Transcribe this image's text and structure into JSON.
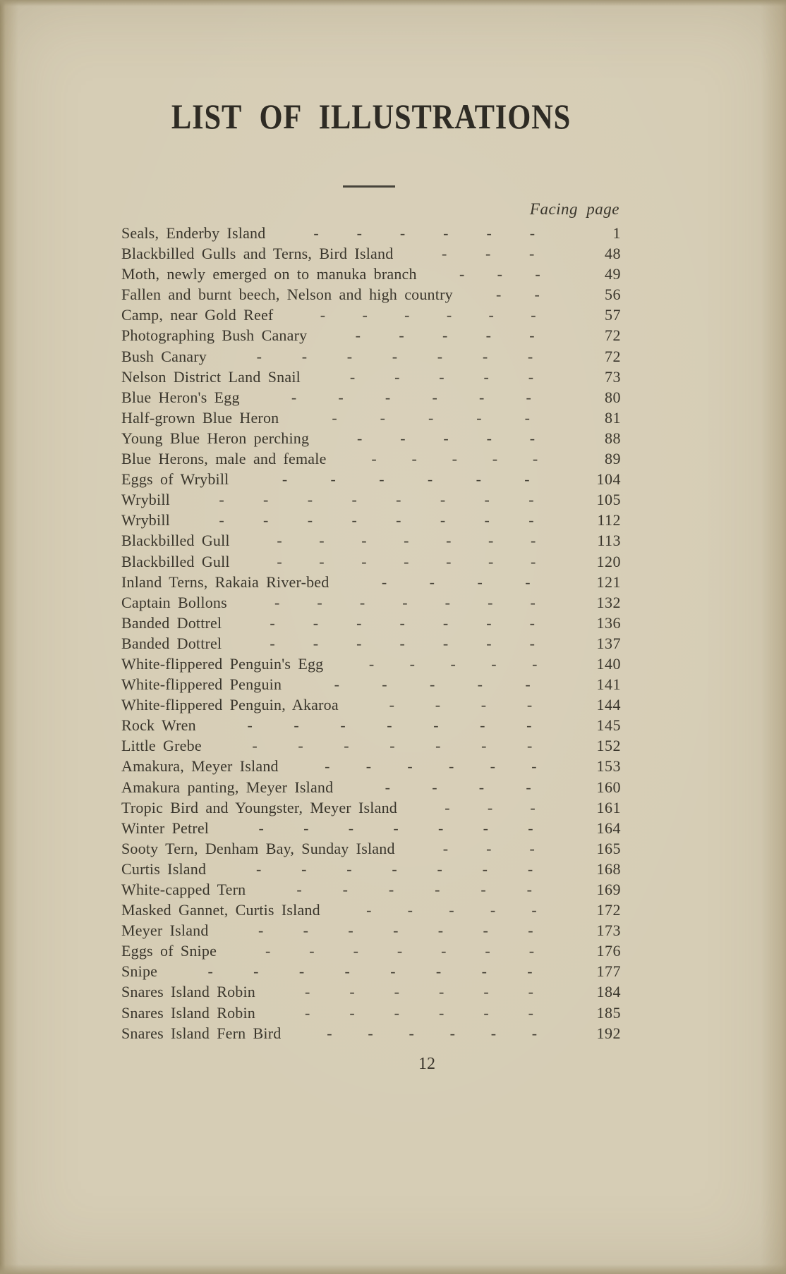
{
  "page": {
    "title": "LIST OF ILLUSTRATIONS",
    "column_header": "Facing page",
    "footer_page_number": "12",
    "paper_color": "#d6cdb5",
    "ink_color": "#3a362c"
  },
  "entries": [
    {
      "label": "Seals, Enderby Island",
      "dashes": 6,
      "page": "1"
    },
    {
      "label": "Blackbilled Gulls and Terns, Bird Island",
      "dashes": 3,
      "page": "48"
    },
    {
      "label": "Moth, newly emerged on to manuka branch",
      "dashes": 3,
      "page": "49"
    },
    {
      "label": "Fallen and burnt beech, Nelson and high country",
      "dashes": 2,
      "page": "56"
    },
    {
      "label": "Camp, near Gold Reef",
      "dashes": 6,
      "page": "57"
    },
    {
      "label": "Photographing Bush Canary",
      "dashes": 5,
      "page": "72"
    },
    {
      "label": "Bush Canary",
      "dashes": 7,
      "page": "72"
    },
    {
      "label": "Nelson District Land Snail",
      "dashes": 5,
      "page": "73"
    },
    {
      "label": "Blue Heron's Egg",
      "dashes": 6,
      "page": "80"
    },
    {
      "label": "Half-grown Blue Heron",
      "dashes": 5,
      "page": "81"
    },
    {
      "label": "Young Blue Heron perching",
      "dashes": 5,
      "page": "88"
    },
    {
      "label": "Blue Herons, male and female",
      "dashes": 5,
      "page": "89"
    },
    {
      "label": "Eggs of Wrybill",
      "dashes": 6,
      "page": "104"
    },
    {
      "label": "Wrybill",
      "dashes": 8,
      "page": "105"
    },
    {
      "label": "Wrybill",
      "dashes": 8,
      "page": "112"
    },
    {
      "label": "Blackbilled Gull",
      "dashes": 7,
      "page": "113"
    },
    {
      "label": "Blackbilled Gull",
      "dashes": 7,
      "page": "120"
    },
    {
      "label": "Inland Terns, Rakaia River-bed",
      "dashes": 4,
      "page": "121"
    },
    {
      "label": "Captain Bollons",
      "dashes": 7,
      "page": "132"
    },
    {
      "label": "Banded Dottrel",
      "dashes": 7,
      "page": "136"
    },
    {
      "label": "Banded Dottrel",
      "dashes": 7,
      "page": "137"
    },
    {
      "label": "White-flippered Penguin's Egg",
      "dashes": 5,
      "page": "140"
    },
    {
      "label": "White-flippered Penguin",
      "dashes": 5,
      "page": "141"
    },
    {
      "label": "White-flippered Penguin, Akaroa",
      "dashes": 4,
      "page": "144"
    },
    {
      "label": "Rock Wren",
      "dashes": 7,
      "page": "145"
    },
    {
      "label": "Little Grebe",
      "dashes": 7,
      "page": "152"
    },
    {
      "label": "Amakura, Meyer Island",
      "dashes": 6,
      "page": "153"
    },
    {
      "label": "Amakura panting, Meyer Island",
      "dashes": 4,
      "page": "160"
    },
    {
      "label": "Tropic Bird and Youngster, Meyer Island",
      "dashes": 3,
      "page": "161"
    },
    {
      "label": "Winter Petrel",
      "dashes": 7,
      "page": "164"
    },
    {
      "label": "Sooty Tern, Denham Bay, Sunday Island",
      "dashes": 3,
      "page": "165"
    },
    {
      "label": "Curtis Island",
      "dashes": 7,
      "page": "168"
    },
    {
      "label": "White-capped Tern",
      "dashes": 6,
      "page": "169"
    },
    {
      "label": "Masked Gannet, Curtis Island",
      "dashes": 5,
      "page": "172"
    },
    {
      "label": "Meyer Island",
      "dashes": 7,
      "page": "173"
    },
    {
      "label": "Eggs of Snipe",
      "dashes": 7,
      "page": "176"
    },
    {
      "label": "Snipe",
      "dashes": 8,
      "page": "177"
    },
    {
      "label": "Snares Island Robin",
      "dashes": 6,
      "page": "184"
    },
    {
      "label": "Snares Island Robin",
      "dashes": 6,
      "page": "185"
    },
    {
      "label": "Snares Island Fern Bird",
      "dashes": 6,
      "page": "192"
    }
  ]
}
